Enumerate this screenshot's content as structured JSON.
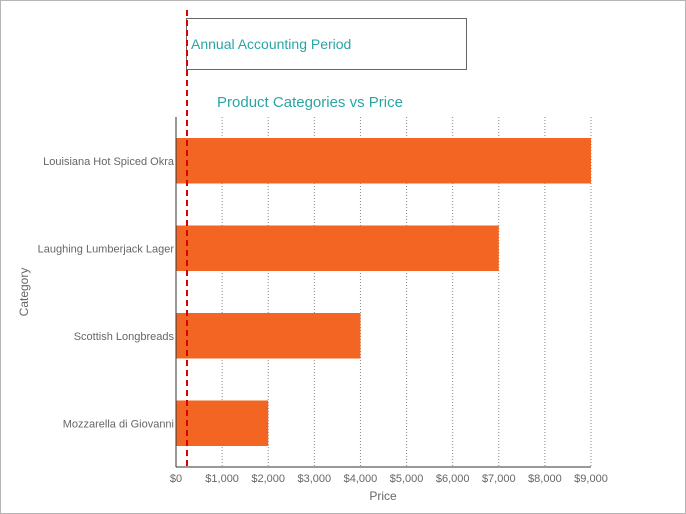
{
  "accounting_period": {
    "label": "Annual Accounting Period"
  },
  "colors": {
    "bar": "#f26522",
    "title": "#2aa5a5",
    "axis_text": "#666666",
    "grid": "#888888",
    "marker": "#dd0000"
  },
  "chart_data": {
    "type": "bar",
    "orientation": "horizontal",
    "title": "Product Categories vs Price",
    "xlabel": "Price",
    "ylabel": "Category",
    "categories": [
      "Louisiana Hot Spiced Okra",
      "Laughing Lumberjack Lager",
      "Scottish Longbreads",
      "Mozzarella di Giovanni"
    ],
    "values": [
      9000,
      7000,
      4000,
      2000
    ],
    "xlim": [
      0,
      9000
    ],
    "x_ticks": [
      "$0",
      "$1,000",
      "$2,000",
      "$3,000",
      "$4,000",
      "$5,000",
      "$6,000",
      "$7,000",
      "$8,000",
      "$9,000"
    ],
    "grid": "vertical dotted",
    "legend": "none"
  }
}
